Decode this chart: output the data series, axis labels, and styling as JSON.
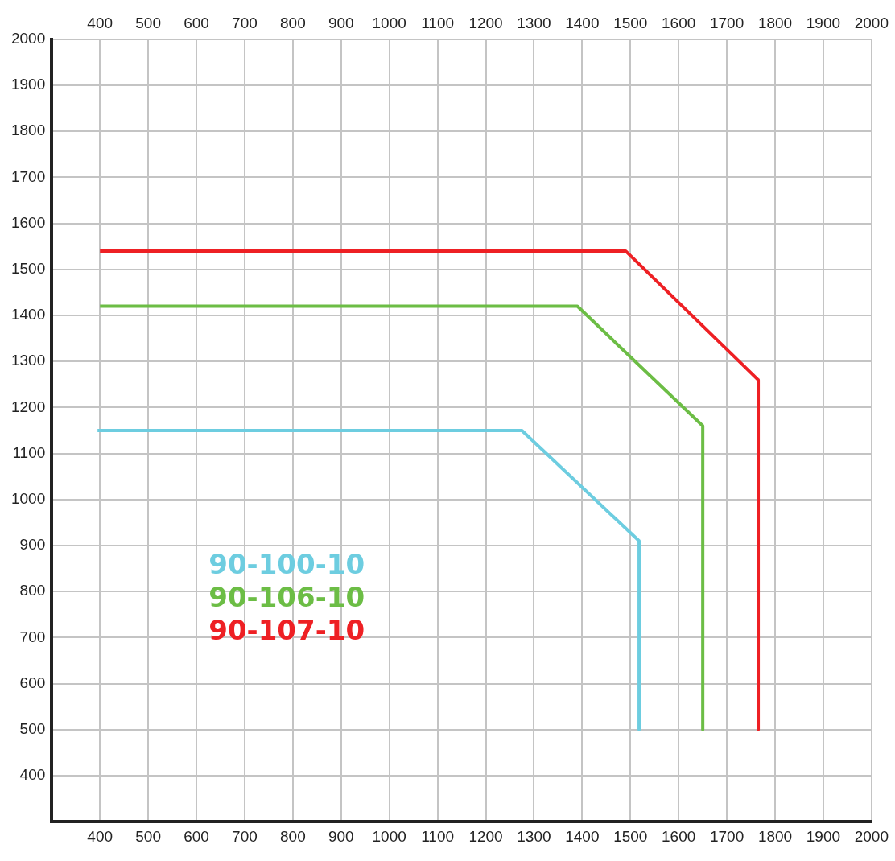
{
  "chart_data": {
    "type": "line",
    "xlim": [
      300,
      2000
    ],
    "ylim": [
      300,
      2000
    ],
    "xticks": [
      400,
      500,
      600,
      700,
      800,
      900,
      1000,
      1100,
      1200,
      1300,
      1400,
      1500,
      1600,
      1700,
      1800,
      1900,
      2000
    ],
    "x2lim": [
      300,
      2000
    ],
    "x2ticks": [
      400,
      500,
      600,
      700,
      800,
      900,
      1000,
      1100,
      1200,
      1300,
      1400,
      1500,
      1600,
      1700,
      1800,
      1900,
      2000
    ],
    "yticks": [
      400,
      500,
      600,
      700,
      800,
      900,
      1000,
      1100,
      1200,
      1300,
      1400,
      1500,
      1600,
      1700,
      1800,
      1900,
      2000
    ],
    "grid": true,
    "legend": "bottom left",
    "marker": "none",
    "line_style": "solid",
    "series": [
      {
        "name": "90-100-10",
        "color": "#6dcde0",
        "x": [
          395,
          1275,
          1518,
          1518
        ],
        "values": [
          1150,
          1150,
          910,
          500
        ]
      },
      {
        "name": "90-106-10",
        "color": "#6cbd45",
        "x": [
          400,
          1390,
          1650,
          1650
        ],
        "values": [
          1420,
          1420,
          1160,
          500
        ]
      },
      {
        "name": "90-107-10",
        "color": "#ee2024",
        "x": [
          400,
          1490,
          1765,
          1765
        ],
        "values": [
          1540,
          1540,
          1260,
          500
        ]
      }
    ]
  }
}
